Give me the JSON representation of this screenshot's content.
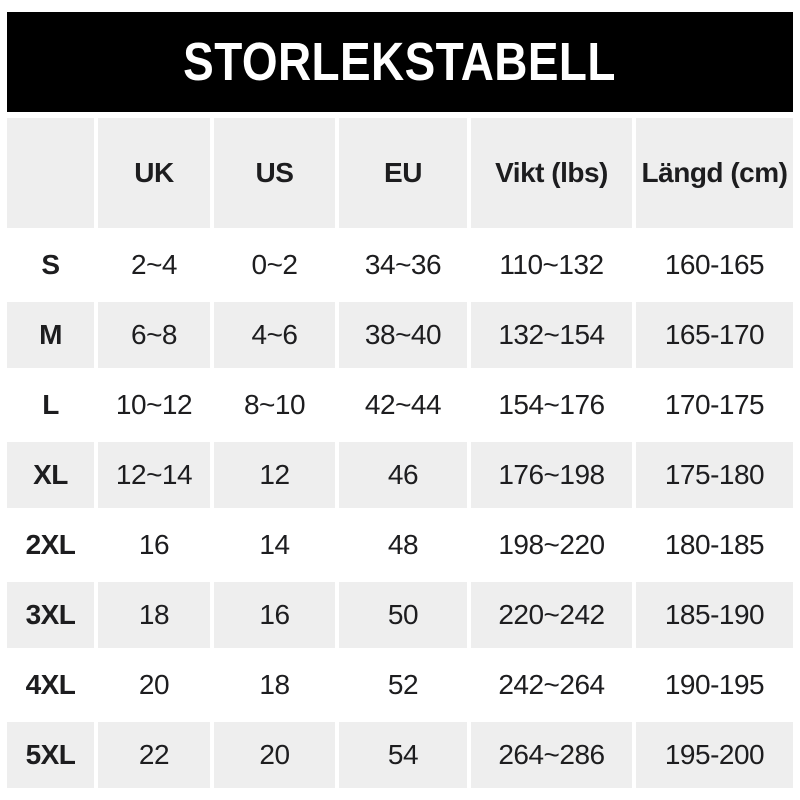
{
  "banner": {
    "title": "STORLEKSTABELL"
  },
  "chart_data": {
    "type": "table",
    "title": "STORLEKSTABELL",
    "columns": [
      "",
      "UK",
      "US",
      "EU",
      "Vikt (lbs)",
      "Längd (cm)"
    ],
    "rows": [
      [
        "S",
        "2~4",
        "0~2",
        "34~36",
        "110~132",
        "160-165"
      ],
      [
        "M",
        "6~8",
        "4~6",
        "38~40",
        "132~154",
        "165-170"
      ],
      [
        "L",
        "10~12",
        "8~10",
        "42~44",
        "154~176",
        "170-175"
      ],
      [
        "XL",
        "12~14",
        "12",
        "46",
        "176~198",
        "175-180"
      ],
      [
        "2XL",
        "16",
        "14",
        "48",
        "198~220",
        "180-185"
      ],
      [
        "3XL",
        "18",
        "16",
        "50",
        "220~242",
        "185-190"
      ],
      [
        "4XL",
        "20",
        "18",
        "52",
        "242~264",
        "190-195"
      ],
      [
        "5XL",
        "22",
        "20",
        "54",
        "264~286",
        "195-200"
      ]
    ],
    "layout": {
      "alternating_row_shading": true,
      "header_row_shaded": true
    }
  },
  "colors": {
    "banner_bg": "#000000",
    "banner_text": "#ffffff",
    "row_alt_bg": "#eeeeee",
    "text": "#1d1d1f"
  }
}
